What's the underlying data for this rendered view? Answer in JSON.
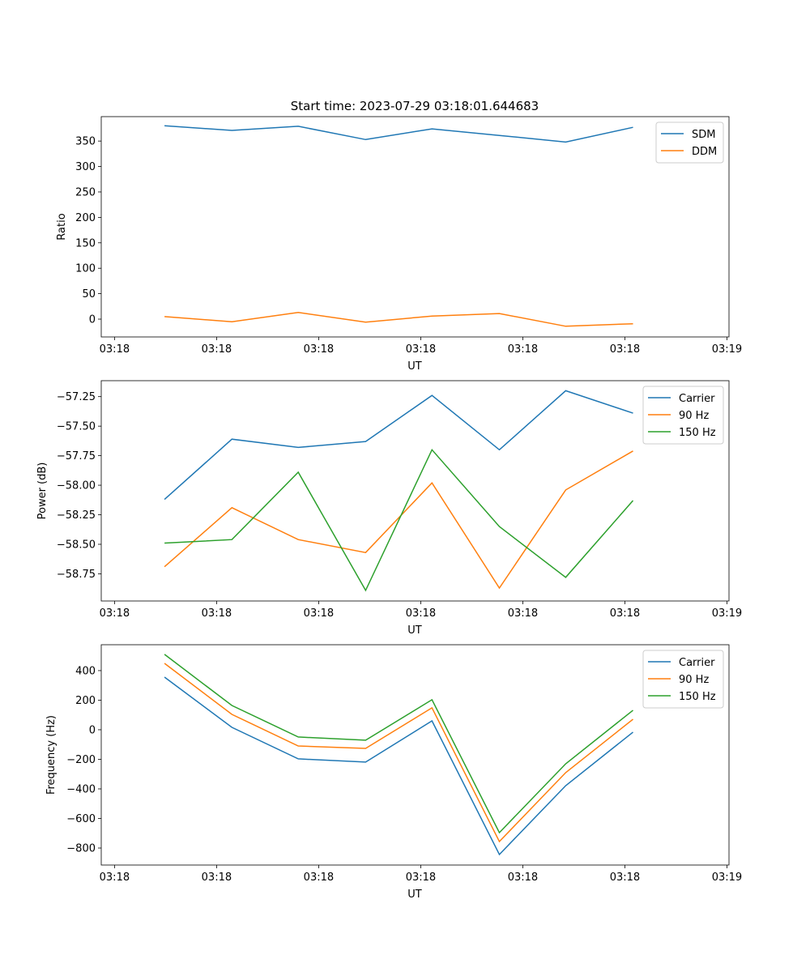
{
  "title": "Start time: 2023-07-29 03:18:01.644683",
  "colors": {
    "c0": "#1f77b4",
    "c1": "#ff7f0e",
    "c2": "#2ca02c"
  },
  "chart_data": [
    {
      "type": "line",
      "xlabel": "UT",
      "ylabel": "Ratio",
      "x_units": "seconds after 03:18:00",
      "xlim": [
        -1.3,
        60.2
      ],
      "xticks": [
        0,
        10,
        20,
        30,
        40,
        50,
        60
      ],
      "xticklabels": [
        "03:18",
        "03:18",
        "03:18",
        "03:18",
        "03:18",
        "03:18",
        "03:19"
      ],
      "ylim": [
        -35,
        398
      ],
      "yticks": [
        0,
        50,
        100,
        150,
        200,
        250,
        300,
        350
      ],
      "yticklabels": [
        "0",
        "50",
        "100",
        "150",
        "200",
        "250",
        "300",
        "350"
      ],
      "legend": "top-right",
      "x": [
        4.9,
        11.5,
        18.0,
        24.6,
        31.1,
        37.7,
        44.2,
        50.8
      ],
      "series": [
        {
          "name": "SDM",
          "color": "#1f77b4",
          "values": [
            380,
            371,
            379,
            353,
            374,
            361,
            348,
            377
          ]
        },
        {
          "name": "DDM",
          "color": "#ff7f0e",
          "values": [
            5,
            -5,
            13,
            -6,
            6,
            11,
            -14,
            -9
          ]
        }
      ]
    },
    {
      "type": "line",
      "xlabel": "UT",
      "ylabel": "Power (dB)",
      "x_units": "seconds after 03:18:00",
      "xlim": [
        -1.3,
        60.2
      ],
      "xticks": [
        0,
        10,
        20,
        30,
        40,
        50,
        60
      ],
      "xticklabels": [
        "03:18",
        "03:18",
        "03:18",
        "03:18",
        "03:18",
        "03:18",
        "03:19"
      ],
      "ylim": [
        -58.98,
        -57.115
      ],
      "yticks": [
        -58.75,
        -58.5,
        -58.25,
        -58.0,
        -57.75,
        -57.5,
        -57.25
      ],
      "yticklabels": [
        "−58.75",
        "−58.50",
        "−58.25",
        "−58.00",
        "−57.75",
        "−57.50",
        "−57.25"
      ],
      "legend": "top-right",
      "x": [
        4.9,
        11.5,
        18.0,
        24.6,
        31.1,
        37.7,
        44.2,
        50.8
      ],
      "series": [
        {
          "name": "Carrier",
          "color": "#1f77b4",
          "values": [
            -58.12,
            -57.61,
            -57.68,
            -57.63,
            -57.24,
            -57.7,
            -57.2,
            -57.39
          ]
        },
        {
          "name": "90 Hz",
          "color": "#ff7f0e",
          "values": [
            -58.69,
            -58.19,
            -58.46,
            -58.57,
            -57.98,
            -58.87,
            -58.04,
            -57.71
          ]
        },
        {
          "name": "150 Hz",
          "color": "#2ca02c",
          "values": [
            -58.49,
            -58.46,
            -57.89,
            -58.89,
            -57.7,
            -58.35,
            -58.78,
            -58.13
          ]
        }
      ]
    },
    {
      "type": "line",
      "xlabel": "UT",
      "ylabel": "Frequency (Hz)",
      "x_units": "seconds after 03:18:00",
      "xlim": [
        -1.3,
        60.2
      ],
      "xticks": [
        0,
        10,
        20,
        30,
        40,
        50,
        60
      ],
      "xticklabels": [
        "03:18",
        "03:18",
        "03:18",
        "03:18",
        "03:18",
        "03:18",
        "03:19"
      ],
      "ylim": [
        -915,
        575
      ],
      "yticks": [
        -800,
        -600,
        -400,
        -200,
        0,
        200,
        400
      ],
      "yticklabels": [
        "−800",
        "−600",
        "−400",
        "−200",
        "0",
        "200",
        "400"
      ],
      "legend": "top-right",
      "x": [
        4.9,
        11.5,
        18.0,
        24.6,
        31.1,
        37.7,
        44.2,
        50.8
      ],
      "series": [
        {
          "name": "Carrier",
          "color": "#1f77b4",
          "values": [
            356,
            16,
            -197,
            -219,
            60,
            -844,
            -378,
            -16
          ]
        },
        {
          "name": "90 Hz",
          "color": "#ff7f0e",
          "values": [
            449,
            104,
            -110,
            -126,
            148,
            -756,
            -290,
            71
          ]
        },
        {
          "name": "150 Hz",
          "color": "#2ca02c",
          "values": [
            510,
            164,
            -49,
            -71,
            203,
            -696,
            -230,
            132
          ]
        }
      ]
    }
  ]
}
